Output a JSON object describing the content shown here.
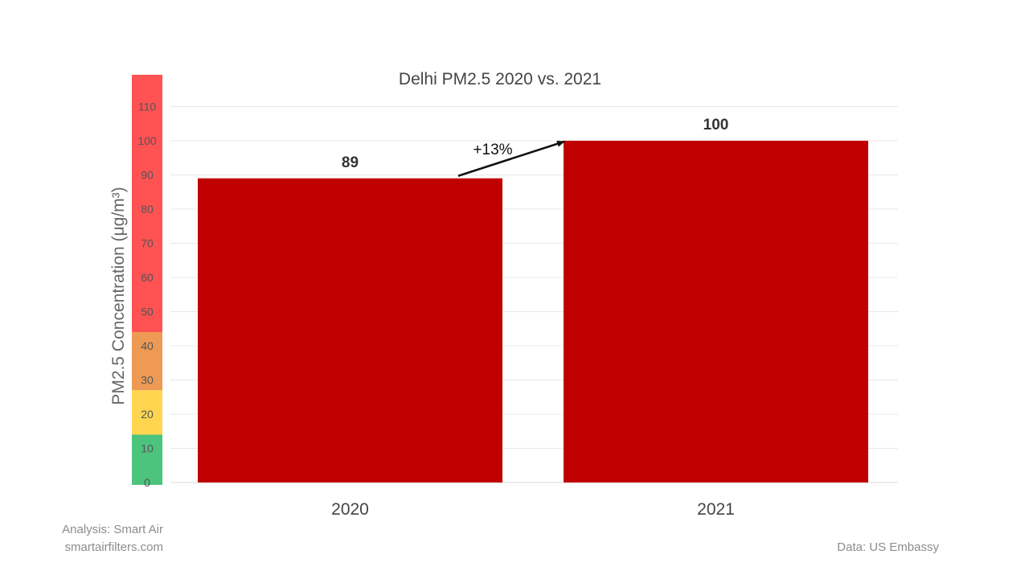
{
  "chart_data": {
    "type": "bar",
    "title": "Delhi PM2.5 2020 vs. 2021",
    "categories": [
      "2020",
      "2021"
    ],
    "values": [
      89,
      100
    ],
    "data_labels": [
      "89",
      "100"
    ],
    "ylabel": "PM2.5 Concentration  (μg/m³)",
    "ylim": [
      0,
      110
    ],
    "yticks": [
      0,
      10,
      20,
      30,
      40,
      50,
      60,
      70,
      80,
      90,
      100,
      110
    ],
    "grid": true,
    "bar_color": "#c00000",
    "annotation": {
      "text": "+13%",
      "from_category": "2020",
      "to_category": "2021"
    },
    "aqi_bands": [
      {
        "from": 0,
        "to": 14,
        "color": "#4cc47d"
      },
      {
        "from": 14,
        "to": 27,
        "color": "#ffd54f"
      },
      {
        "from": 27,
        "to": 44,
        "color": "#ee9a55"
      },
      {
        "from": 44,
        "to": 120,
        "color": "#ff5252"
      }
    ]
  },
  "footer": {
    "analysis": "Analysis:  Smart Air",
    "website": "smartairfilters.com",
    "source": "Data: US Embassy"
  }
}
